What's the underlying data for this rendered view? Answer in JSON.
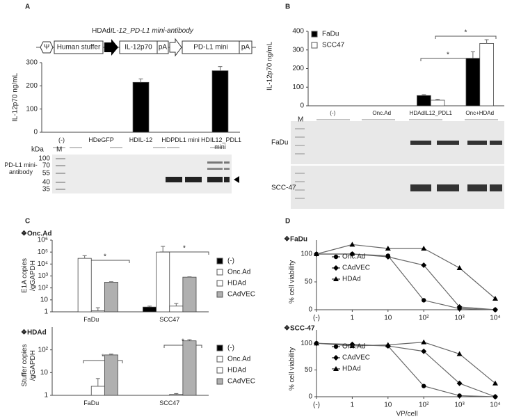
{
  "chart_data": [
    {
      "panel": "A",
      "type": "bar",
      "construct": {
        "title_prefix": "HDAd",
        "title_italic": "IL-12_PD-L1 mini-antibody",
        "elements": [
          "Ψ",
          "Human stuffer",
          "IL-12p70",
          "pA",
          "PD-L1 mini",
          "pA"
        ]
      },
      "ylabel": "IL-12p70 ng/mL",
      "categories": [
        "(-)",
        "HDeGFP",
        "HDIL-12",
        "HDPDL1 mini",
        "HDIL12_PDL1 mini"
      ],
      "values": [
        0,
        0,
        215,
        0,
        265
      ],
      "errors": [
        0,
        0,
        15,
        0,
        18
      ],
      "color": "#000000",
      "ylim": [
        0,
        300
      ],
      "yticks": [
        0,
        100,
        200,
        300
      ],
      "blot": {
        "label": "PD-L1 mini-antibody",
        "unit": "kDa",
        "marker": "M",
        "sizes": [
          100,
          70,
          55,
          40,
          35
        ]
      }
    },
    {
      "panel": "B",
      "type": "bar",
      "ylabel": "IL-12p70 ng/mL",
      "categories": [
        "(-)",
        "Onc.Ad",
        "HDAdIL12_PDL1",
        "Onc+HDAd"
      ],
      "series": [
        {
          "name": "FaDu",
          "color": "#000000",
          "values": [
            0,
            0,
            55,
            255
          ],
          "errors": [
            0,
            0,
            5,
            35
          ]
        },
        {
          "name": "SCC47",
          "color": "#ffffff",
          "values": [
            0,
            0,
            30,
            335
          ],
          "errors": [
            0,
            0,
            5,
            20
          ]
        }
      ],
      "ylim": [
        0,
        400
      ],
      "yticks": [
        0,
        100,
        200,
        300,
        400
      ],
      "legend": "top-left",
      "significance": [
        "*",
        "*"
      ],
      "blot": {
        "marker": "M",
        "lanes": [
          "FaDu",
          "SCC-47"
        ]
      }
    },
    {
      "panel": "C",
      "type": "bar",
      "header": "❖Onc.Ad",
      "ylabel": "E1A copies /gGAPDH",
      "log_scale": true,
      "categories": [
        "FaDu",
        "SCC47"
      ],
      "series": [
        {
          "name": "(-)",
          "color": "#000000",
          "values": [
            null,
            2.5
          ],
          "errors": [
            null,
            0.5
          ]
        },
        {
          "name": "Onc.Ad",
          "color": "#ffffff",
          "values": [
            30000,
            100000
          ],
          "errors": [
            20000,
            200000
          ]
        },
        {
          "name": "HDAd",
          "color": "#ffffff",
          "values": [
            1.2,
            3
          ],
          "errors": [
            1,
            2
          ]
        },
        {
          "name": "CAdVEC",
          "color": "#b0b0b0",
          "values": [
            300,
            800
          ],
          "errors": [
            30,
            50
          ]
        }
      ],
      "ylim": [
        1,
        1000000
      ],
      "yticks": [
        1,
        10,
        {
          "value": 100,
          "label": "10²"
        },
        {
          "value": 1000,
          "label": "10³"
        },
        {
          "value": 10000,
          "label": "10⁴"
        },
        {
          "value": 100000,
          "label": "10⁵"
        },
        {
          "value": 1000000,
          "label": "10⁶"
        }
      ],
      "legend": "right",
      "significance": [
        "*",
        "*"
      ]
    },
    {
      "type": "bar",
      "header": "❖HDAd",
      "ylabel": "Stuffer copies /gGAPDH",
      "log_scale": true,
      "categories": [
        "FaDu",
        "SCC47"
      ],
      "series": [
        {
          "name": "(-)",
          "color": "#000000",
          "values": [
            null,
            null
          ],
          "errors": [
            null,
            null
          ]
        },
        {
          "name": "Onc.Ad",
          "color": "#ffffff",
          "values": [
            null,
            null
          ],
          "errors": [
            null,
            null
          ]
        },
        {
          "name": "HDAd",
          "color": "#ffffff",
          "values": [
            2.5,
            1.1
          ],
          "errors": [
            3,
            0.1
          ]
        },
        {
          "name": "CAdVEC",
          "color": "#b0b0b0",
          "values": [
            60,
            250
          ],
          "errors": [
            5,
            30
          ]
        }
      ],
      "ylim": [
        1,
        1000
      ],
      "yticks": [
        1,
        10,
        {
          "value": 100,
          "label": "10²"
        }
      ],
      "legend": "right",
      "significance": [
        "*",
        "*"
      ]
    },
    {
      "panel": "D",
      "type": "line",
      "header": "❖FaDu",
      "ylabel": "% cell viability",
      "categories": [
        "(-)",
        "1",
        "10",
        "10²",
        "10³",
        "10⁴"
      ],
      "series": [
        {
          "name": "Onc.Ad",
          "color": "#000000",
          "marker": "circle",
          "values": [
            100,
            100,
            97,
            17,
            2,
            0
          ]
        },
        {
          "name": "CAdVEC",
          "color": "#000000",
          "marker": "diamond",
          "values": [
            100,
            100,
            95,
            80,
            5,
            0
          ]
        },
        {
          "name": "HDAd",
          "color": "#000000",
          "marker": "triangle",
          "values": [
            100,
            117,
            110,
            110,
            75,
            20
          ]
        }
      ],
      "ylim": [
        0,
        125
      ],
      "yticks": [
        0,
        50,
        100
      ],
      "legend": "top-left"
    },
    {
      "type": "line",
      "header": "❖SCC-47",
      "ylabel": "% cell viability",
      "xlabel": "VP/cell",
      "categories": [
        "(-)",
        "1",
        "10",
        "10²",
        "10³",
        "10⁴"
      ],
      "series": [
        {
          "name": "Onc.Ad",
          "color": "#000000",
          "marker": "circle",
          "values": [
            100,
            97,
            95,
            20,
            2,
            0
          ]
        },
        {
          "name": "CAdVEC",
          "color": "#000000",
          "marker": "diamond",
          "values": [
            100,
            98,
            95,
            85,
            25,
            0
          ]
        },
        {
          "name": "HDAd",
          "color": "#000000",
          "marker": "triangle",
          "values": [
            100,
            95,
            97,
            102,
            80,
            25
          ]
        }
      ],
      "ylim": [
        0,
        125
      ],
      "yticks": [
        0,
        50,
        100
      ],
      "legend": "top-left"
    }
  ]
}
